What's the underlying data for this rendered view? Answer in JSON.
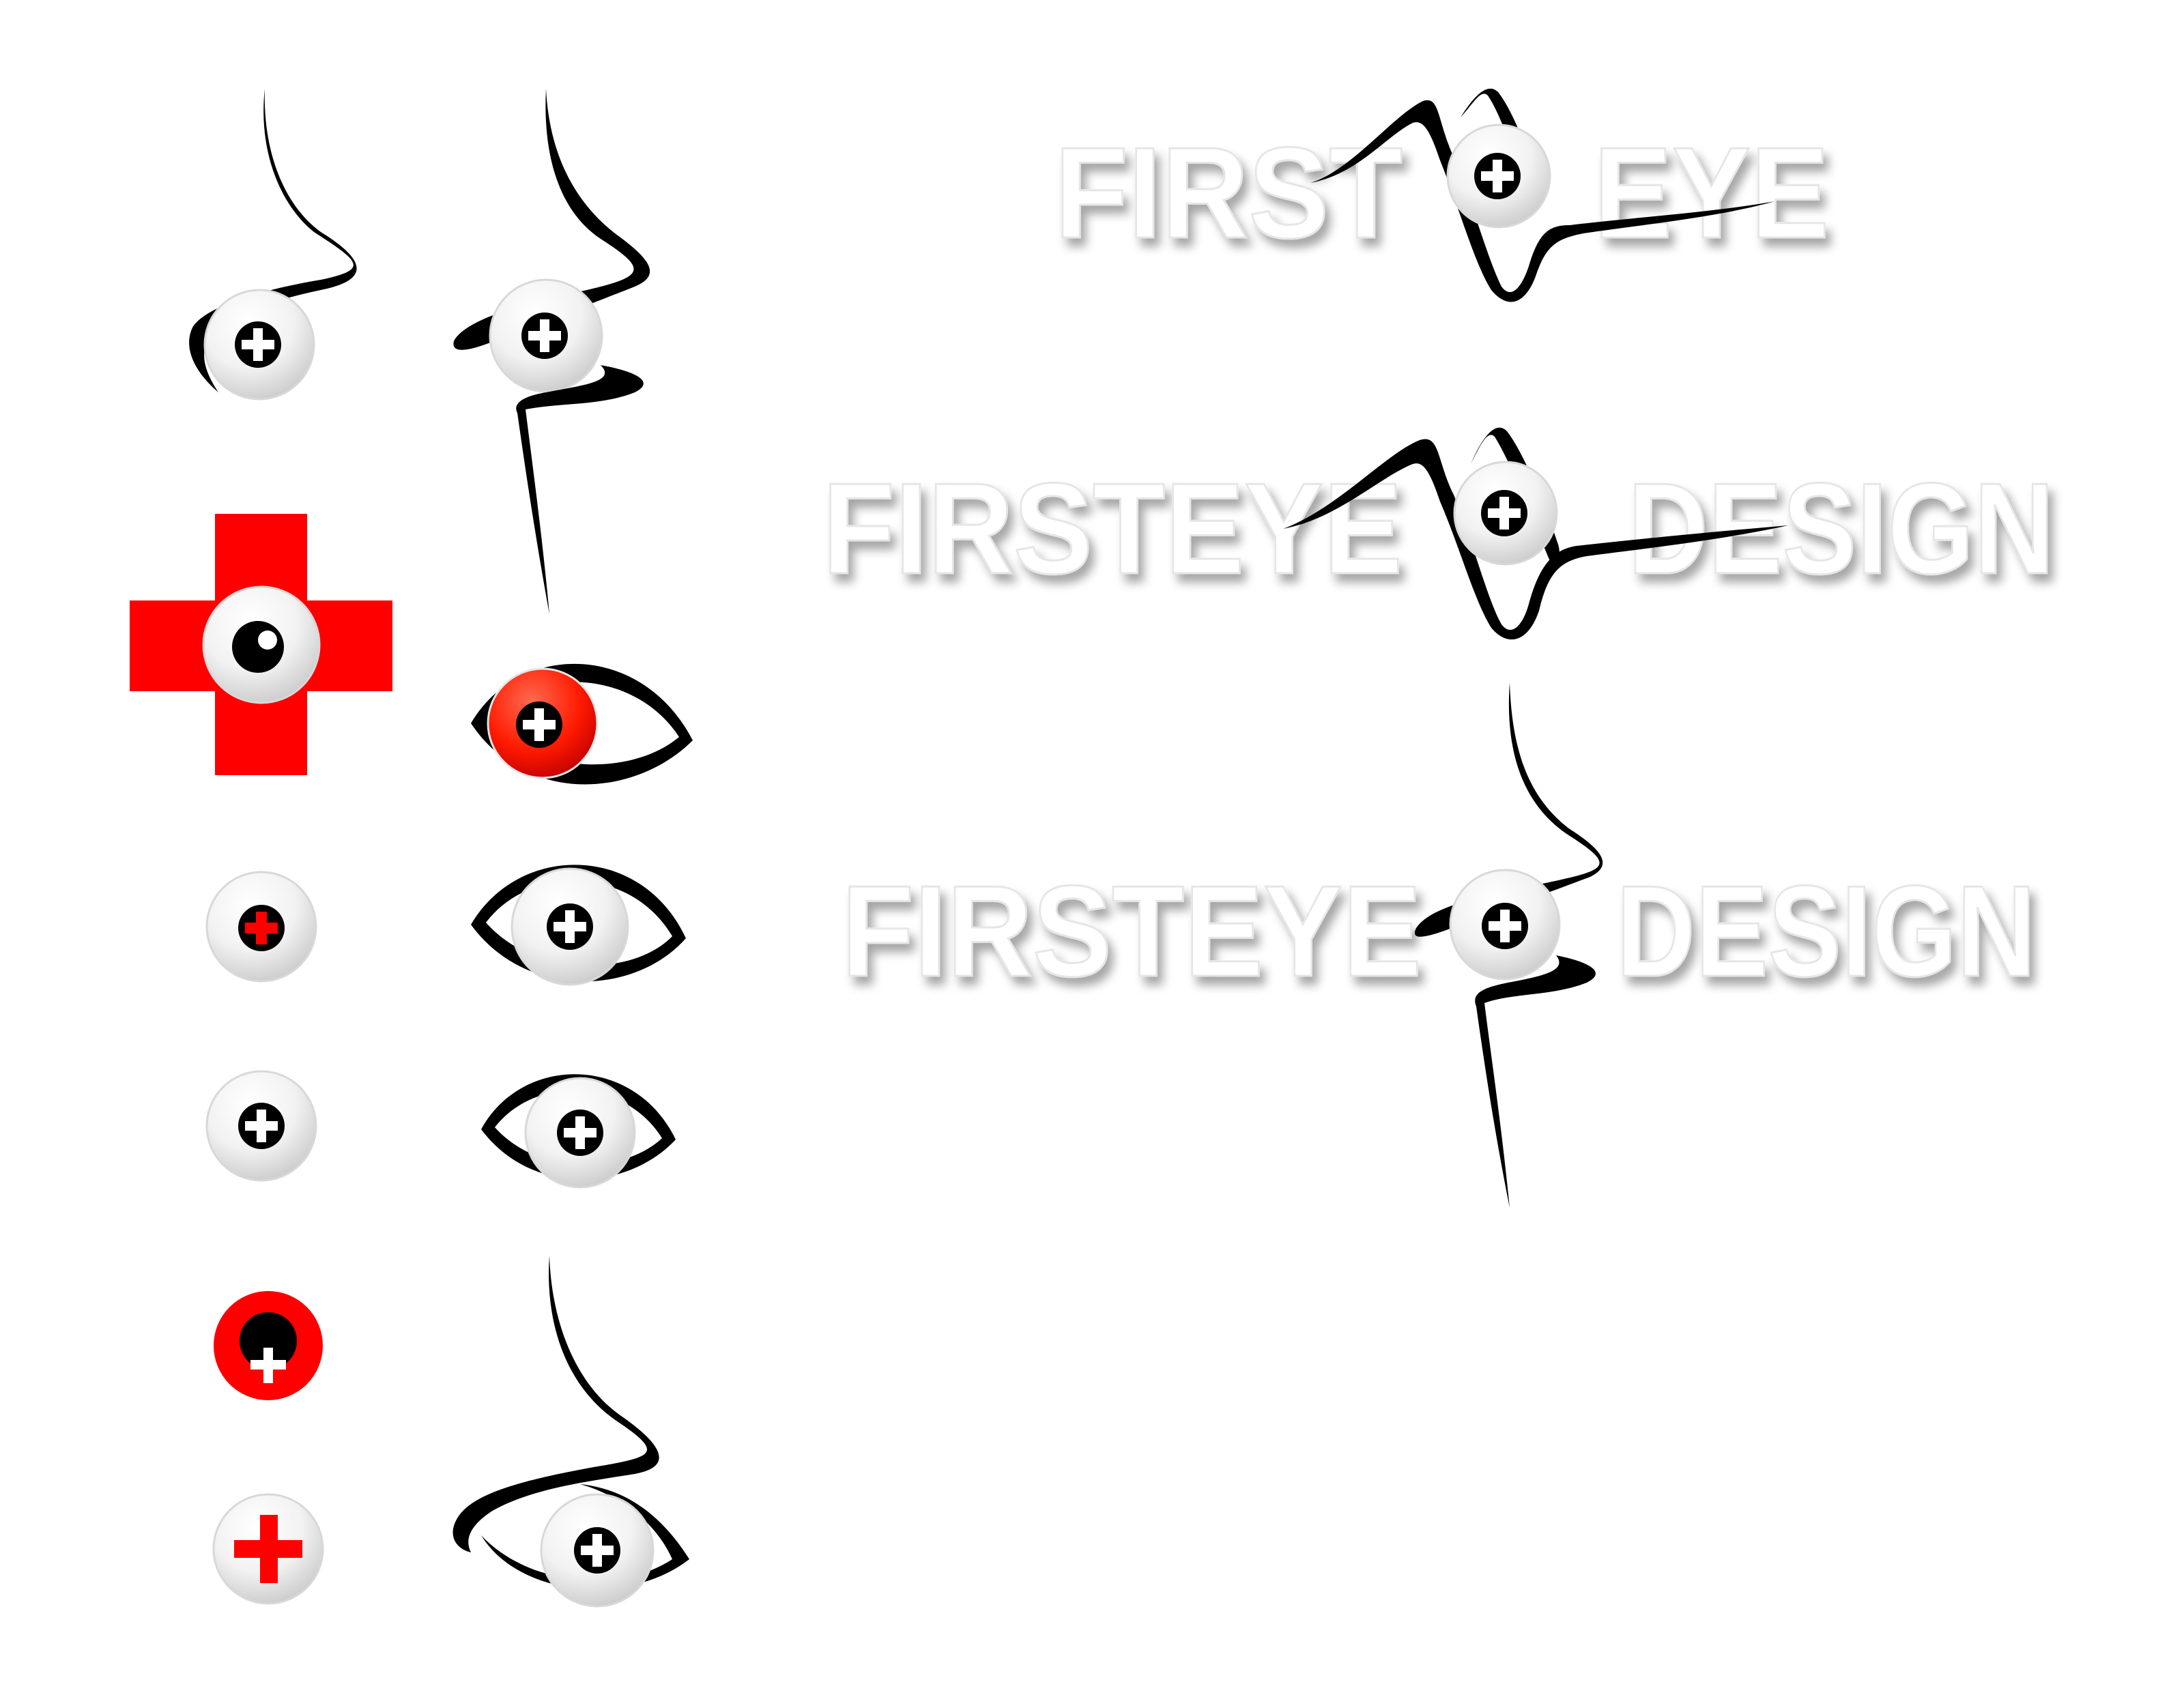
{
  "wordmarks": [
    {
      "left": "FIRST",
      "right": "EYE"
    },
    {
      "left": "FIRSTEYE",
      "right": "DESIGN"
    },
    {
      "left": "FIRSTEYE",
      "right": "DESIGN"
    }
  ],
  "colors": {
    "brand_red": "#ff0000",
    "ink": "#000000",
    "lens_light": "#ffffff",
    "lens_dark": "#cfcfcf"
  }
}
